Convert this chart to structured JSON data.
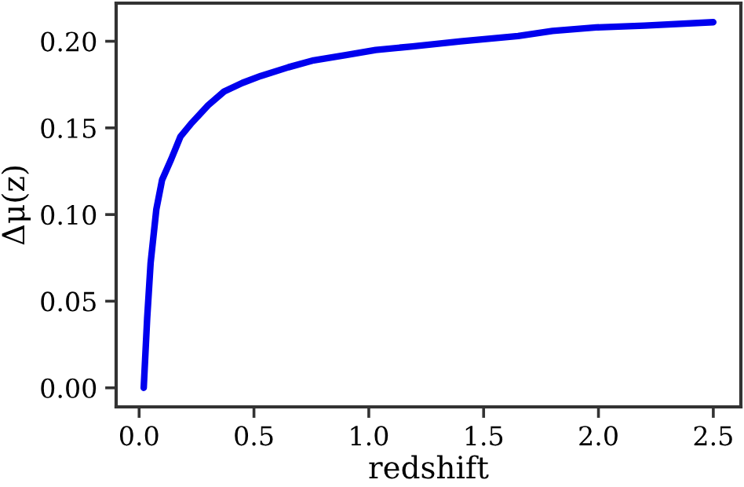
{
  "chart_data": {
    "type": "line",
    "xlabel": "redshift",
    "ylabel": "Δμ(z)",
    "x": [
      0.02,
      0.035,
      0.05,
      0.075,
      0.1,
      0.14,
      0.18,
      0.23,
      0.3,
      0.37,
      0.45,
      0.53,
      0.65,
      0.76,
      0.9,
      1.03,
      1.19,
      1.4,
      1.65,
      1.8,
      1.99,
      2.2,
      2.5
    ],
    "series": [
      {
        "color": "#0000ee",
        "values": [
          0.0,
          0.04,
          0.072,
          0.103,
          0.12,
          0.132,
          0.145,
          0.153,
          0.163,
          0.171,
          0.176,
          0.18,
          0.185,
          0.189,
          0.192,
          0.195,
          0.197,
          0.2,
          0.203,
          0.206,
          0.208,
          0.209,
          0.211
        ]
      }
    ],
    "xlim": [
      -0.1,
      2.62
    ],
    "ylim": [
      -0.011,
      0.222
    ],
    "xticks": [
      {
        "value": 0,
        "label": "0.0"
      },
      0.5,
      {
        "value": 1,
        "label": "1.0"
      },
      1.5,
      {
        "value": 2,
        "label": "2.0"
      },
      2.5
    ],
    "yticks": [
      {
        "value": 0,
        "label": "0.00"
      },
      0.05,
      {
        "value": 0.1,
        "label": "0.10"
      },
      0.15,
      {
        "value": 0.2,
        "label": "0.20"
      }
    ],
    "grid": false,
    "legend": false,
    "marker": "none",
    "line_style": "solid"
  }
}
